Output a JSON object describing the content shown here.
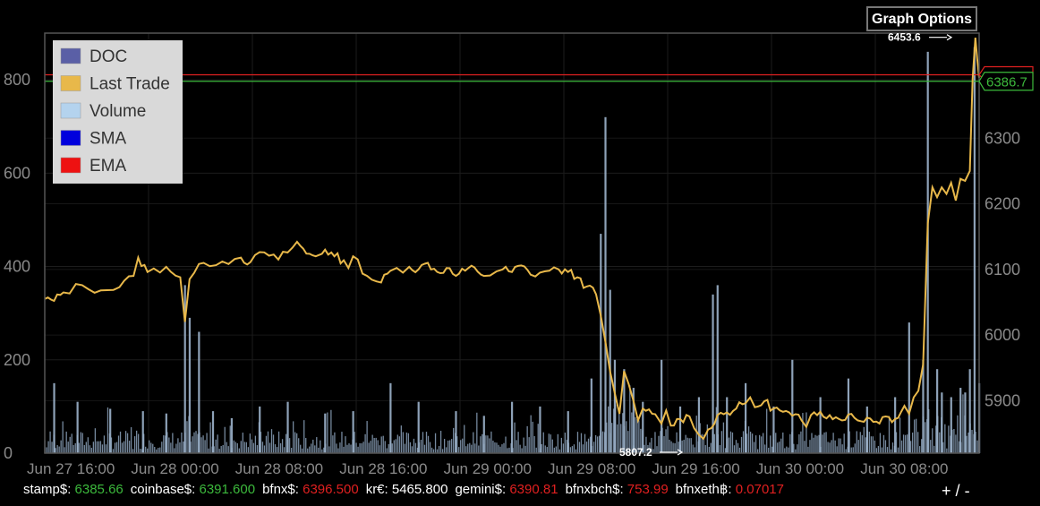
{
  "graph_options_label": "Graph Options",
  "zoom": {
    "plus": "+",
    "sep": "/",
    "minus": "-"
  },
  "ticker": [
    {
      "label": "stamp$:",
      "value": "6385.66",
      "dir": "up"
    },
    {
      "label": "coinbase$:",
      "value": "6391.600",
      "dir": "up"
    },
    {
      "label": "bfnx$:",
      "value": "6396.500",
      "dir": "down"
    },
    {
      "label": "kr€:",
      "value": "5465.800",
      "dir": "none"
    },
    {
      "label": "gemini$:",
      "value": "6390.81",
      "dir": "down"
    },
    {
      "label": "bfnxbch$:",
      "value": "753.99",
      "dir": "down"
    },
    {
      "label": "bfnxeth฿:",
      "value": "0.07017",
      "dir": "down"
    }
  ],
  "chart_data": {
    "type": "line",
    "grid": true,
    "legend_position": "top-left",
    "legend": [
      {
        "name": "DOC",
        "color": "#5a5fa6"
      },
      {
        "name": "Last Trade",
        "color": "#e8b84a"
      },
      {
        "name": "Volume",
        "color": "#b4d3ee"
      },
      {
        "name": "SMA",
        "color": "#0000dd"
      },
      {
        "name": "EMA",
        "color": "#ee1111"
      }
    ],
    "x_ticks": [
      "Jun 27 16:00",
      "Jun 28 00:00",
      "Jun 28 08:00",
      "Jun 28 16:00",
      "Jun 29 00:00",
      "Jun 29 08:00",
      "Jun 29 16:00",
      "Jun 30 00:00",
      "Jun 30 08:00"
    ],
    "left_axis": {
      "label": "",
      "range": [
        0,
        900
      ],
      "ticks": [
        0,
        200,
        400,
        600,
        800
      ]
    },
    "right_axis": {
      "label": "",
      "range": [
        5820,
        6460
      ],
      "ticks": [
        5900,
        6000,
        6100,
        6200,
        6300
      ]
    },
    "current_price_label": "6386.7",
    "max_annotation": {
      "label": "6453.6",
      "price": 6453.6
    },
    "min_annotation": {
      "label": "5807.2",
      "price": 5807.2
    },
    "horizontal_lines": [
      {
        "name": "EMA",
        "price": 6396.5,
        "color": "#e02020"
      },
      {
        "name": "SMA",
        "price": 6386.7,
        "color": "#3cb93c"
      }
    ],
    "last_trade": {
      "name": "Last Trade",
      "t_price": [
        [
          0,
          6055
        ],
        [
          0.01,
          6052
        ],
        [
          0.02,
          6065
        ],
        [
          0.04,
          6076
        ],
        [
          0.06,
          6068
        ],
        [
          0.08,
          6073
        ],
        [
          0.095,
          6090
        ],
        [
          0.1,
          6118
        ],
        [
          0.11,
          6096
        ],
        [
          0.13,
          6104
        ],
        [
          0.145,
          6088
        ],
        [
          0.15,
          6020
        ],
        [
          0.155,
          6085
        ],
        [
          0.17,
          6110
        ],
        [
          0.19,
          6112
        ],
        [
          0.21,
          6118
        ],
        [
          0.22,
          6111
        ],
        [
          0.235,
          6126
        ],
        [
          0.25,
          6115
        ],
        [
          0.265,
          6133
        ],
        [
          0.27,
          6142
        ],
        [
          0.28,
          6124
        ],
        [
          0.29,
          6120
        ],
        [
          0.3,
          6130
        ],
        [
          0.31,
          6120
        ],
        [
          0.32,
          6114
        ],
        [
          0.325,
          6102
        ],
        [
          0.33,
          6120
        ],
        [
          0.345,
          6090
        ],
        [
          0.36,
          6080
        ],
        [
          0.37,
          6098
        ],
        [
          0.39,
          6104
        ],
        [
          0.4,
          6100
        ],
        [
          0.41,
          6110
        ],
        [
          0.42,
          6096
        ],
        [
          0.43,
          6102
        ],
        [
          0.44,
          6090
        ],
        [
          0.45,
          6098
        ],
        [
          0.46,
          6103
        ],
        [
          0.47,
          6090
        ],
        [
          0.49,
          6100
        ],
        [
          0.5,
          6096
        ],
        [
          0.51,
          6106
        ],
        [
          0.52,
          6092
        ],
        [
          0.535,
          6097
        ],
        [
          0.55,
          6100
        ],
        [
          0.56,
          6096
        ],
        [
          0.57,
          6088
        ],
        [
          0.58,
          6074
        ],
        [
          0.59,
          6062
        ],
        [
          0.595,
          6030
        ],
        [
          0.6,
          5990
        ],
        [
          0.605,
          5945
        ],
        [
          0.61,
          5912
        ],
        [
          0.615,
          5880
        ],
        [
          0.62,
          5945
        ],
        [
          0.625,
          5925
        ],
        [
          0.63,
          5900
        ],
        [
          0.635,
          5870
        ],
        [
          0.64,
          5888
        ],
        [
          0.65,
          5880
        ],
        [
          0.66,
          5865
        ],
        [
          0.665,
          5885
        ],
        [
          0.67,
          5862
        ],
        [
          0.68,
          5872
        ],
        [
          0.69,
          5876
        ],
        [
          0.695,
          5858
        ],
        [
          0.7,
          5848
        ],
        [
          0.705,
          5842
        ],
        [
          0.71,
          5856
        ],
        [
          0.72,
          5878
        ],
        [
          0.73,
          5882
        ],
        [
          0.74,
          5888
        ],
        [
          0.75,
          5896
        ],
        [
          0.755,
          5905
        ],
        [
          0.76,
          5890
        ],
        [
          0.77,
          5899
        ],
        [
          0.78,
          5888
        ],
        [
          0.79,
          5883
        ],
        [
          0.8,
          5877
        ],
        [
          0.81,
          5870
        ],
        [
          0.815,
          5860
        ],
        [
          0.82,
          5878
        ],
        [
          0.83,
          5883
        ],
        [
          0.84,
          5878
        ],
        [
          0.85,
          5872
        ],
        [
          0.86,
          5879
        ],
        [
          0.87,
          5870
        ],
        [
          0.88,
          5874
        ],
        [
          0.89,
          5868
        ],
        [
          0.9,
          5876
        ],
        [
          0.91,
          5872
        ],
        [
          0.92,
          5892
        ],
        [
          0.925,
          5880
        ],
        [
          0.93,
          5905
        ],
        [
          0.935,
          5915
        ],
        [
          0.94,
          5955
        ],
        [
          0.945,
          6170
        ],
        [
          0.95,
          6225
        ],
        [
          0.955,
          6210
        ],
        [
          0.96,
          6225
        ],
        [
          0.965,
          6215
        ],
        [
          0.97,
          6232
        ],
        [
          0.975,
          6205
        ],
        [
          0.98,
          6238
        ],
        [
          0.985,
          6235
        ],
        [
          0.99,
          6250
        ],
        [
          0.993,
          6390
        ],
        [
          0.996,
          6453
        ],
        [
          0.998,
          6420
        ],
        [
          1.0,
          6392
        ]
      ]
    },
    "volume": {
      "name": "Volume",
      "t_value": [
        [
          0.01,
          150
        ],
        [
          0.035,
          110
        ],
        [
          0.07,
          95
        ],
        [
          0.105,
          90
        ],
        [
          0.13,
          85
        ],
        [
          0.15,
          360
        ],
        [
          0.155,
          290
        ],
        [
          0.165,
          260
        ],
        [
          0.18,
          90
        ],
        [
          0.2,
          75
        ],
        [
          0.23,
          100
        ],
        [
          0.26,
          110
        ],
        [
          0.3,
          85
        ],
        [
          0.33,
          90
        ],
        [
          0.37,
          150
        ],
        [
          0.4,
          110
        ],
        [
          0.44,
          90
        ],
        [
          0.47,
          80
        ],
        [
          0.5,
          110
        ],
        [
          0.53,
          100
        ],
        [
          0.56,
          90
        ],
        [
          0.585,
          160
        ],
        [
          0.595,
          470
        ],
        [
          0.6,
          720
        ],
        [
          0.605,
          350
        ],
        [
          0.61,
          200
        ],
        [
          0.62,
          180
        ],
        [
          0.63,
          140
        ],
        [
          0.64,
          110
        ],
        [
          0.66,
          200
        ],
        [
          0.68,
          100
        ],
        [
          0.7,
          120
        ],
        [
          0.715,
          340
        ],
        [
          0.72,
          360
        ],
        [
          0.73,
          120
        ],
        [
          0.75,
          150
        ],
        [
          0.78,
          100
        ],
        [
          0.8,
          200
        ],
        [
          0.83,
          120
        ],
        [
          0.86,
          160
        ],
        [
          0.88,
          100
        ],
        [
          0.91,
          120
        ],
        [
          0.925,
          280
        ],
        [
          0.94,
          200
        ],
        [
          0.945,
          860
        ],
        [
          0.955,
          180
        ],
        [
          0.96,
          130
        ],
        [
          0.97,
          120
        ],
        [
          0.98,
          140
        ],
        [
          0.985,
          130
        ],
        [
          0.99,
          180
        ],
        [
          0.995,
          870
        ],
        [
          1.0,
          150
        ]
      ]
    }
  }
}
